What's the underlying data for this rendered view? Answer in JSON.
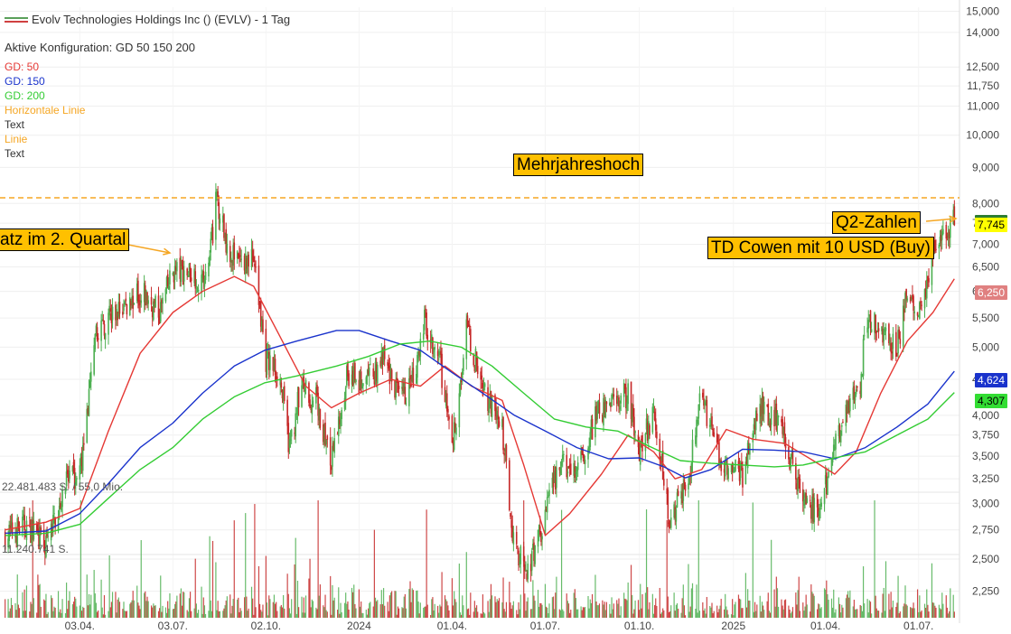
{
  "header": {
    "title": "Evolv Technologies Holdings Inc () (EVLV) - 1 Tag",
    "config": "Aktive Konfiguration: GD 50 150 200"
  },
  "legend": [
    {
      "label": "GD: 50",
      "color": "#e53935"
    },
    {
      "label": "GD: 150",
      "color": "#1a33cc"
    },
    {
      "label": "GD: 200",
      "color": "#33cc33"
    },
    {
      "label": "Horizontale Linie",
      "color": "#f5a623"
    },
    {
      "label": "Text",
      "color": "#333333"
    },
    {
      "label": "Linie",
      "color": "#f5a623"
    },
    {
      "label": "Text",
      "color": "#333333"
    }
  ],
  "annotations": {
    "high": "Mehrjahreshoch",
    "quarter": "atz im 2. Quartal",
    "q2": "Q2-Zahlen",
    "td": "TD Cowen mit 10 USD (Buy)"
  },
  "volume_labels": {
    "upper": "22.481.483 S. / 55,0 Mio.",
    "lower": "11.240.741 S."
  },
  "price_tags": {
    "last": "7,745",
    "gd50": "6,250",
    "gd150": "4,624",
    "gd200": "4,307"
  },
  "colors": {
    "up": "#4caf50",
    "down": "#c62828",
    "gd50": "#e53935",
    "gd150": "#1a33cc",
    "gd200": "#33cc33",
    "hline": "#f5a623",
    "annotation_bg": "#ffc000"
  },
  "chart_data": {
    "type": "line",
    "scale": "log",
    "y_ticks": [
      "15,000",
      "14,000",
      "12,500",
      "11,750",
      "11,000",
      "10,000",
      "9,000",
      "8,000",
      "7,500",
      "7,000",
      "6,500",
      "6,000",
      "5,500",
      "5,000",
      "4,500",
      "4,000",
      "3,750",
      "3,500",
      "3,250",
      "3,000",
      "2,750",
      "2,500",
      "2,250"
    ],
    "x_ticks": [
      "03.04.",
      "03.07.",
      "02.10.",
      "2024",
      "01.04.",
      "01.07.",
      "01.10.",
      "2025",
      "01.04.",
      "01.07."
    ],
    "ylim": [
      2.1,
      15.2
    ],
    "horizontal_line": 8.15,
    "price_path": [
      [
        "2023-01-20",
        2.7
      ],
      [
        "2023-02-10",
        2.8
      ],
      [
        "2023-03-01",
        2.6
      ],
      [
        "2023-03-20",
        3.2
      ],
      [
        "2023-04-03",
        3.3
      ],
      [
        "2023-04-20",
        5.3
      ],
      [
        "2023-05-10",
        5.6
      ],
      [
        "2023-06-01",
        6.0
      ],
      [
        "2023-06-20",
        5.6
      ],
      [
        "2023-07-03",
        6.4
      ],
      [
        "2023-07-20",
        6.4
      ],
      [
        "2023-08-05",
        6.2
      ],
      [
        "2023-08-15",
        8.2
      ],
      [
        "2023-08-25",
        7.0
      ],
      [
        "2023-09-05",
        6.6
      ],
      [
        "2023-09-20",
        6.7
      ],
      [
        "2023-10-02",
        4.8
      ],
      [
        "2023-10-15",
        4.6
      ],
      [
        "2023-10-25",
        3.6
      ],
      [
        "2023-11-05",
        4.4
      ],
      [
        "2023-11-20",
        4.2
      ],
      [
        "2023-12-05",
        3.4
      ],
      [
        "2023-12-20",
        4.6
      ],
      [
        "2024-01-05",
        4.4
      ],
      [
        "2024-01-25",
        4.8
      ],
      [
        "2024-02-10",
        4.2
      ],
      [
        "2024-02-25",
        4.5
      ],
      [
        "2024-03-05",
        5.5
      ],
      [
        "2024-03-20",
        4.8
      ],
      [
        "2024-04-01",
        3.6
      ],
      [
        "2024-04-15",
        5.3
      ],
      [
        "2024-05-01",
        4.4
      ],
      [
        "2024-05-20",
        3.8
      ],
      [
        "2024-06-01",
        2.6
      ],
      [
        "2024-06-15",
        2.4
      ],
      [
        "2024-07-01",
        2.9
      ],
      [
        "2024-07-15",
        3.4
      ],
      [
        "2024-08-01",
        3.3
      ],
      [
        "2024-08-20",
        4.0
      ],
      [
        "2024-09-05",
        4.2
      ],
      [
        "2024-09-20",
        4.3
      ],
      [
        "2024-10-01",
        3.6
      ],
      [
        "2024-10-15",
        4.0
      ],
      [
        "2024-11-01",
        2.8
      ],
      [
        "2024-11-20",
        3.4
      ],
      [
        "2024-12-01",
        4.3
      ],
      [
        "2024-12-20",
        3.4
      ],
      [
        "2025-01-10",
        3.3
      ],
      [
        "2025-01-25",
        4.1
      ],
      [
        "2025-02-10",
        4.0
      ],
      [
        "2025-02-25",
        3.5
      ],
      [
        "2025-03-10",
        3.0
      ],
      [
        "2025-03-25",
        2.9
      ],
      [
        "2025-04-05",
        3.3
      ],
      [
        "2025-04-20",
        4.2
      ],
      [
        "2025-05-05",
        4.2
      ],
      [
        "2025-05-10",
        5.5
      ],
      [
        "2025-05-25",
        5.3
      ],
      [
        "2025-06-10",
        5.0
      ],
      [
        "2025-06-20",
        6.0
      ],
      [
        "2025-07-01",
        5.5
      ],
      [
        "2025-07-15",
        6.9
      ],
      [
        "2025-07-25",
        7.1
      ],
      [
        "2025-08-05",
        7.75
      ]
    ],
    "series": [
      {
        "name": "GD: 50",
        "values": [
          [
            "2023-01-20",
            2.75
          ],
          [
            "2023-03-01",
            2.82
          ],
          [
            "2023-04-03",
            2.95
          ],
          [
            "2023-05-01",
            3.8
          ],
          [
            "2023-06-01",
            4.9
          ],
          [
            "2023-07-03",
            5.6
          ],
          [
            "2023-08-01",
            6.0
          ],
          [
            "2023-09-01",
            6.3
          ],
          [
            "2023-09-20",
            6.1
          ],
          [
            "2023-10-15",
            5.2
          ],
          [
            "2023-11-10",
            4.4
          ],
          [
            "2023-12-05",
            4.1
          ],
          [
            "2024-01-01",
            4.3
          ],
          [
            "2024-02-01",
            4.5
          ],
          [
            "2024-03-01",
            4.4
          ],
          [
            "2024-03-25",
            4.7
          ],
          [
            "2024-04-20",
            4.4
          ],
          [
            "2024-05-20",
            4.2
          ],
          [
            "2024-06-10",
            3.4
          ],
          [
            "2024-07-01",
            2.7
          ],
          [
            "2024-07-25",
            2.9
          ],
          [
            "2024-08-25",
            3.3
          ],
          [
            "2024-09-20",
            3.75
          ],
          [
            "2024-10-15",
            3.55
          ],
          [
            "2024-11-05",
            3.25
          ],
          [
            "2024-12-01",
            3.35
          ],
          [
            "2024-12-25",
            3.82
          ],
          [
            "2025-01-20",
            3.7
          ],
          [
            "2025-02-20",
            3.65
          ],
          [
            "2025-03-20",
            3.45
          ],
          [
            "2025-04-10",
            3.3
          ],
          [
            "2025-05-01",
            3.55
          ],
          [
            "2025-05-25",
            4.3
          ],
          [
            "2025-06-20",
            5.1
          ],
          [
            "2025-07-15",
            5.6
          ],
          [
            "2025-08-05",
            6.25
          ]
        ]
      },
      {
        "name": "GD: 150",
        "values": [
          [
            "2023-01-20",
            2.72
          ],
          [
            "2023-03-01",
            2.74
          ],
          [
            "2023-04-03",
            2.9
          ],
          [
            "2023-05-01",
            3.2
          ],
          [
            "2023-06-01",
            3.6
          ],
          [
            "2023-07-03",
            3.9
          ],
          [
            "2023-08-01",
            4.3
          ],
          [
            "2023-09-01",
            4.7
          ],
          [
            "2023-10-01",
            4.95
          ],
          [
            "2023-11-01",
            5.1
          ],
          [
            "2023-12-10",
            5.28
          ],
          [
            "2024-01-01",
            5.28
          ],
          [
            "2024-02-01",
            5.1
          ],
          [
            "2024-03-01",
            4.95
          ],
          [
            "2024-04-01",
            4.6
          ],
          [
            "2024-05-01",
            4.3
          ],
          [
            "2024-06-01",
            4.0
          ],
          [
            "2024-07-01",
            3.8
          ],
          [
            "2024-08-01",
            3.6
          ],
          [
            "2024-09-01",
            3.47
          ],
          [
            "2024-10-01",
            3.48
          ],
          [
            "2024-10-25",
            3.38
          ],
          [
            "2024-11-15",
            3.26
          ],
          [
            "2024-12-10",
            3.35
          ],
          [
            "2025-01-10",
            3.58
          ],
          [
            "2025-02-10",
            3.57
          ],
          [
            "2025-03-10",
            3.55
          ],
          [
            "2025-04-10",
            3.47
          ],
          [
            "2025-05-10",
            3.6
          ],
          [
            "2025-06-10",
            3.85
          ],
          [
            "2025-07-10",
            4.15
          ],
          [
            "2025-08-05",
            4.62
          ]
        ]
      },
      {
        "name": "GD: 200",
        "values": [
          [
            "2023-01-20",
            2.7
          ],
          [
            "2023-03-01",
            2.72
          ],
          [
            "2023-04-03",
            2.8
          ],
          [
            "2023-05-01",
            3.05
          ],
          [
            "2023-06-01",
            3.35
          ],
          [
            "2023-07-03",
            3.6
          ],
          [
            "2023-08-01",
            3.95
          ],
          [
            "2023-09-01",
            4.25
          ],
          [
            "2023-10-01",
            4.45
          ],
          [
            "2023-11-01",
            4.55
          ],
          [
            "2023-12-10",
            4.7
          ],
          [
            "2024-01-10",
            4.85
          ],
          [
            "2024-02-10",
            5.05
          ],
          [
            "2024-03-10",
            5.1
          ],
          [
            "2024-04-10",
            5.0
          ],
          [
            "2024-05-10",
            4.7
          ],
          [
            "2024-06-10",
            4.3
          ],
          [
            "2024-07-10",
            3.95
          ],
          [
            "2024-08-10",
            3.85
          ],
          [
            "2024-09-10",
            3.8
          ],
          [
            "2024-10-10",
            3.62
          ],
          [
            "2024-11-10",
            3.45
          ],
          [
            "2024-12-10",
            3.42
          ],
          [
            "2025-01-10",
            3.4
          ],
          [
            "2025-02-10",
            3.38
          ],
          [
            "2025-03-10",
            3.4
          ],
          [
            "2025-04-10",
            3.48
          ],
          [
            "2025-05-10",
            3.55
          ],
          [
            "2025-06-10",
            3.75
          ],
          [
            "2025-07-10",
            3.95
          ],
          [
            "2025-08-05",
            4.31
          ]
        ]
      }
    ]
  }
}
